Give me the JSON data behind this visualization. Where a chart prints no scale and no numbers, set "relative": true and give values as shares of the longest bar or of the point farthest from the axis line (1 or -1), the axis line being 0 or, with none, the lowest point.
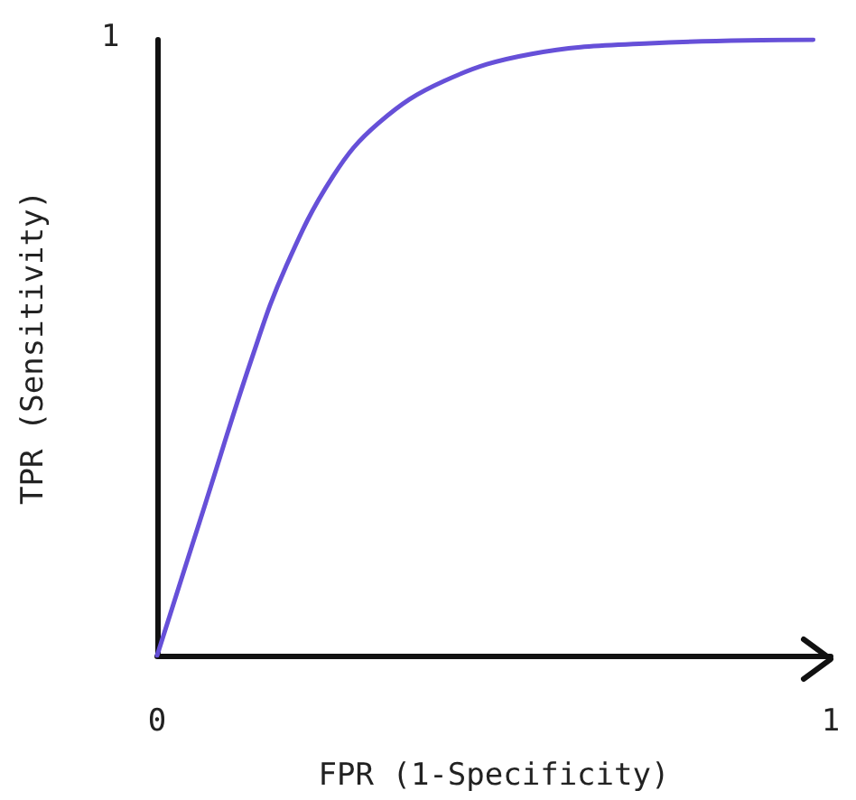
{
  "chart_data": {
    "type": "line",
    "xlabel": "FPR (1-Specificity)",
    "ylabel": "TPR (Sensitivity)",
    "relative": true,
    "x": [
      0,
      0.07,
      0.141,
      0.191,
      0.261,
      0.329,
      0.426,
      0.556,
      0.731,
      0.974
    ],
    "series": [
      {
        "color": "#6650d8",
        "values": [
          0,
          0.241,
          0.484,
          0.631,
          0.778,
          0.865,
          0.933,
          0.977,
          0.994,
          1
        ]
      }
    ],
    "xlim": [
      0,
      1
    ],
    "xticks": [
      0,
      1
    ],
    "tick_labels": "x",
    "annotations": [
      "1"
    ],
    "grid": false,
    "marker": "none",
    "line_style": "solid"
  }
}
